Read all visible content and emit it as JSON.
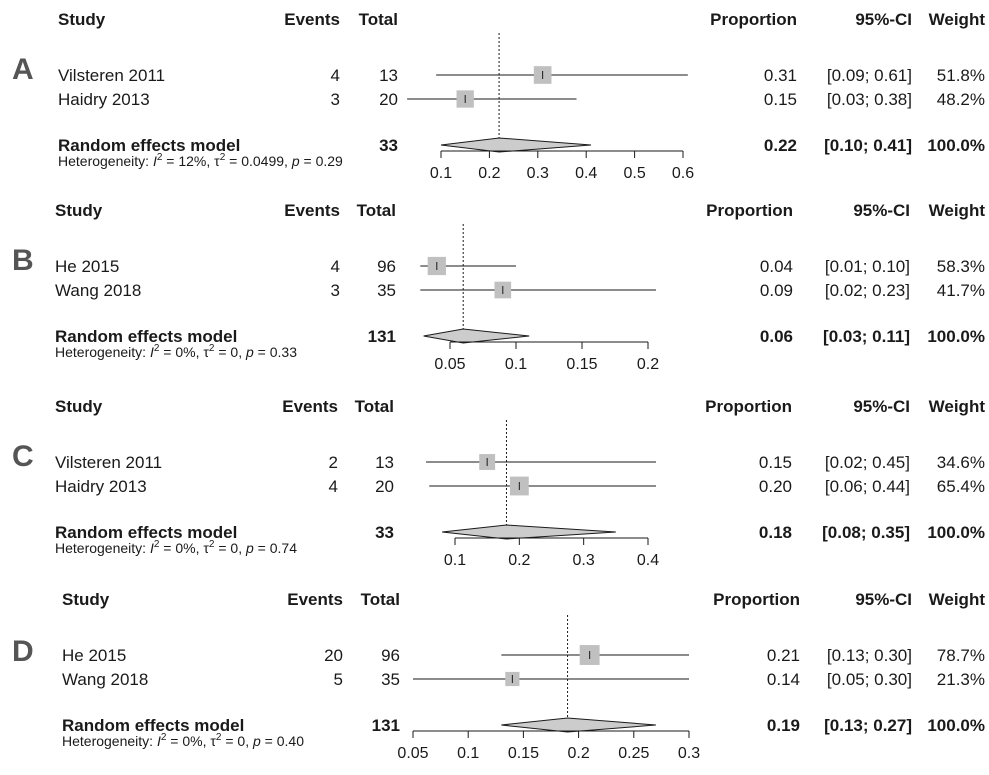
{
  "chart_data": [
    {
      "type": "forest",
      "panel": "A",
      "headers": {
        "study": "Study",
        "events": "Events",
        "total": "Total",
        "proportion": "Proportion",
        "ci": "95%-CI",
        "weight": "Weight"
      },
      "studies": [
        {
          "name": "Vilsteren 2011",
          "events": "4",
          "total": "13",
          "prop_text": "0.31",
          "ci_text": "[0.09; 0.61]",
          "weight_text": "51.8%",
          "est": 0.31,
          "lo": 0.09,
          "hi": 0.61,
          "weight": 51.8
        },
        {
          "name": "Haidry 2013",
          "events": "3",
          "total": "20",
          "prop_text": "0.15",
          "ci_text": "[0.03; 0.38]",
          "weight_text": "48.2%",
          "est": 0.15,
          "lo": 0.03,
          "hi": 0.38,
          "weight": 48.2
        }
      ],
      "pooled": {
        "label": "Random effects model",
        "total": "33",
        "prop_text": "0.22",
        "ci_text": "[0.10; 0.41]",
        "weight_text": "100.0%",
        "est": 0.22,
        "lo": 0.1,
        "hi": 0.41
      },
      "heterogeneity": {
        "prefix": "Heterogeneity: ",
        "i2": "I",
        "i2_rest": " = 12%, ",
        "tau": "τ",
        "tau_rest": " = 0.0499, ",
        "p": "p",
        "p_rest": " = 0.29"
      },
      "xlim": [
        0.1,
        0.6
      ],
      "ticks": [
        "0.1",
        "0.2",
        "0.3",
        "0.4",
        "0.5",
        "0.6"
      ]
    },
    {
      "type": "forest",
      "panel": "B",
      "headers": {
        "study": "Study",
        "events": "Events",
        "total": "Total",
        "proportion": "Proportion",
        "ci": "95%-CI",
        "weight": "Weight"
      },
      "studies": [
        {
          "name": "He 2015",
          "events": "4",
          "total": "96",
          "prop_text": "0.04",
          "ci_text": "[0.01; 0.10]",
          "weight_text": "58.3%",
          "est": 0.04,
          "lo": 0.01,
          "hi": 0.1,
          "weight": 58.3
        },
        {
          "name": "Wang 2018",
          "events": "3",
          "total": "35",
          "prop_text": "0.09",
          "ci_text": "[0.02; 0.23]",
          "weight_text": "41.7%",
          "est": 0.09,
          "lo": 0.02,
          "hi": 0.23,
          "weight": 41.7
        }
      ],
      "pooled": {
        "label": "Random effects model",
        "total": "131",
        "prop_text": "0.06",
        "ci_text": "[0.03; 0.11]",
        "weight_text": "100.0%",
        "est": 0.06,
        "lo": 0.03,
        "hi": 0.11
      },
      "heterogeneity": {
        "prefix": "Heterogeneity: ",
        "i2": "I",
        "i2_rest": " = 0%, ",
        "tau": "τ",
        "tau_rest": " = 0, ",
        "p": "p",
        "p_rest": " = 0.33"
      },
      "xlim": [
        0.05,
        0.2
      ],
      "ticks": [
        "0.05",
        "0.1",
        "0.15",
        "0.2"
      ]
    },
    {
      "type": "forest",
      "panel": "C",
      "headers": {
        "study": "Study",
        "events": "Events",
        "total": "Total",
        "proportion": "Proportion",
        "ci": "95%-CI",
        "weight": "Weight"
      },
      "studies": [
        {
          "name": "Vilsteren 2011",
          "events": "2",
          "total": "13",
          "prop_text": "0.15",
          "ci_text": "[0.02; 0.45]",
          "weight_text": "34.6%",
          "est": 0.15,
          "lo": 0.02,
          "hi": 0.45,
          "weight": 34.6
        },
        {
          "name": "Haidry 2013",
          "events": "4",
          "total": "20",
          "prop_text": "0.20",
          "ci_text": "[0.06; 0.44]",
          "weight_text": "65.4%",
          "est": 0.2,
          "lo": 0.06,
          "hi": 0.44,
          "weight": 65.4
        }
      ],
      "pooled": {
        "label": "Random effects model",
        "total": "33",
        "prop_text": "0.18",
        "ci_text": "[0.08; 0.35]",
        "weight_text": "100.0%",
        "est": 0.18,
        "lo": 0.08,
        "hi": 0.35
      },
      "heterogeneity": {
        "prefix": "Heterogeneity: ",
        "i2": "I",
        "i2_rest": " = 0%, ",
        "tau": "τ",
        "tau_rest": " = 0, ",
        "p": "p",
        "p_rest": " = 0.74"
      },
      "xlim": [
        0.1,
        0.4
      ],
      "ticks": [
        "0.1",
        "0.2",
        "0.3",
        "0.4"
      ]
    },
    {
      "type": "forest",
      "panel": "D",
      "headers": {
        "study": "Study",
        "events": "Events",
        "total": "Total",
        "proportion": "Proportion",
        "ci": "95%-CI",
        "weight": "Weight"
      },
      "studies": [
        {
          "name": "He 2015",
          "events": "20",
          "total": "96",
          "prop_text": "0.21",
          "ci_text": "[0.13; 0.30]",
          "weight_text": "78.7%",
          "est": 0.21,
          "lo": 0.13,
          "hi": 0.3,
          "weight": 78.7
        },
        {
          "name": "Wang 2018",
          "events": "5",
          "total": "35",
          "prop_text": "0.14",
          "ci_text": "[0.05; 0.30]",
          "weight_text": "21.3%",
          "est": 0.14,
          "lo": 0.05,
          "hi": 0.3,
          "weight": 21.3
        }
      ],
      "pooled": {
        "label": "Random effects model",
        "total": "131",
        "prop_text": "0.19",
        "ci_text": "[0.13; 0.27]",
        "weight_text": "100.0%",
        "est": 0.19,
        "lo": 0.13,
        "hi": 0.27
      },
      "heterogeneity": {
        "prefix": "Heterogeneity: ",
        "i2": "I",
        "i2_rest": " = 0%, ",
        "tau": "τ",
        "tau_rest": " = 0, ",
        "p": "p",
        "p_rest": " = 0.40"
      },
      "xlim": [
        0.05,
        0.3
      ],
      "ticks": [
        "0.05",
        "0.1",
        "0.15",
        "0.2",
        "0.25",
        "0.3"
      ]
    }
  ],
  "colors": {
    "box": "#c0c0c0",
    "diamond": "#cccccc",
    "line": "#1a1a1a",
    "letter": "#555555"
  }
}
